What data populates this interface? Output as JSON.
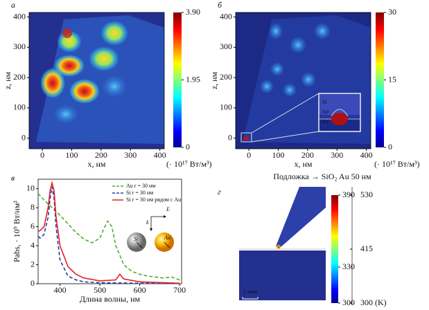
{
  "chart_data": [
    {
      "type": "heatmap",
      "panel": "а",
      "xlabel": "x, нм",
      "ylabel": "z, нм",
      "xlim": [
        -45,
        415
      ],
      "ylim": [
        -35,
        415
      ],
      "xticks": [
        0,
        100,
        200,
        300,
        400
      ],
      "yticks": [
        0,
        100,
        200,
        300,
        400
      ],
      "colorbar_lim": [
        0,
        3.9
      ],
      "colorbar_ticks": [
        0,
        1.95,
        {
          "value": 3.9,
          "label": "3.90"
        }
      ],
      "colorbar_label": "(· 10¹⁷ Вт/м³)"
    },
    {
      "type": "heatmap",
      "panel": "б",
      "xlabel": "x, нм",
      "ylabel": "z, нм",
      "xlim": [
        -45,
        415
      ],
      "ylim": [
        -35,
        415
      ],
      "xticks": [
        0,
        100,
        200,
        300,
        400
      ],
      "yticks": [
        0,
        100,
        200,
        300,
        400
      ],
      "colorbar_lim": [
        0,
        30
      ],
      "colorbar_ticks": [
        0,
        15,
        30
      ],
      "colorbar_label": "(· 10¹⁷ Вт/м³)",
      "annotations": [
        "Si",
        "Air",
        "Au"
      ]
    },
    {
      "type": "line",
      "panel": "в",
      "xlabel": "Длина волны, нм",
      "ylabel": "Pabs, · 10⁹ Вт/нм²",
      "xlim": [
        345,
        705
      ],
      "ylim": [
        0,
        11
      ],
      "xticks": [
        400,
        500,
        600,
        700
      ],
      "yticks": [
        0,
        2,
        4,
        6,
        8,
        10
      ],
      "legend": "upper right",
      "series": [
        {
          "name": "Au r = 30 нм",
          "color": "#4caf2a",
          "style": "dashed",
          "x": [
            345,
            360,
            380,
            400,
            420,
            440,
            460,
            480,
            500,
            510,
            520,
            530,
            540,
            560,
            580,
            600,
            620,
            640,
            660,
            680,
            700
          ],
          "values": [
            9.5,
            8.8,
            8.0,
            7.2,
            6.3,
            5.4,
            4.7,
            4.3,
            4.8,
            5.8,
            6.6,
            6.0,
            4.0,
            2.0,
            1.3,
            1.0,
            0.8,
            0.7,
            0.6,
            0.7,
            0.4
          ]
        },
        {
          "name": "Si r = 30 нм",
          "color": "#1f3fa8",
          "style": "dashed",
          "x": [
            345,
            350,
            360,
            370,
            375,
            380,
            385,
            390,
            400,
            420,
            440,
            460,
            500,
            600,
            700
          ],
          "values": [
            5.0,
            4.8,
            5.2,
            7.0,
            9.0,
            10.2,
            9.0,
            6.0,
            2.5,
            0.8,
            0.4,
            0.2,
            0.1,
            0.05,
            0.02
          ]
        },
        {
          "name": "Si r = 30 нм рядом с Au",
          "color": "#e02020",
          "style": "solid",
          "x": [
            345,
            350,
            360,
            370,
            375,
            380,
            385,
            390,
            400,
            420,
            440,
            460,
            500,
            540,
            550,
            560,
            600,
            700
          ],
          "values": [
            5.5,
            5.6,
            6.0,
            8.0,
            9.8,
            10.6,
            9.8,
            7.0,
            4.0,
            1.8,
            1.0,
            0.6,
            0.3,
            0.4,
            1.0,
            0.5,
            0.2,
            0.05
          ]
        }
      ],
      "annotations": [
        "E",
        "k",
        "Si",
        "Au"
      ]
    },
    {
      "type": "simulation",
      "panel": "г",
      "title": "Подложка → SiO₂ Au 50 нм",
      "scale_bar": "2 мкм",
      "colorbar_lim": [
        300,
        390
      ],
      "colorbar_ticks": [
        300,
        330,
        390
      ],
      "temperature_lim": [
        300,
        530
      ],
      "temperature_ticks": [
        {
          "value": 300,
          "label": "300 (K)"
        },
        415,
        530
      ]
    }
  ]
}
